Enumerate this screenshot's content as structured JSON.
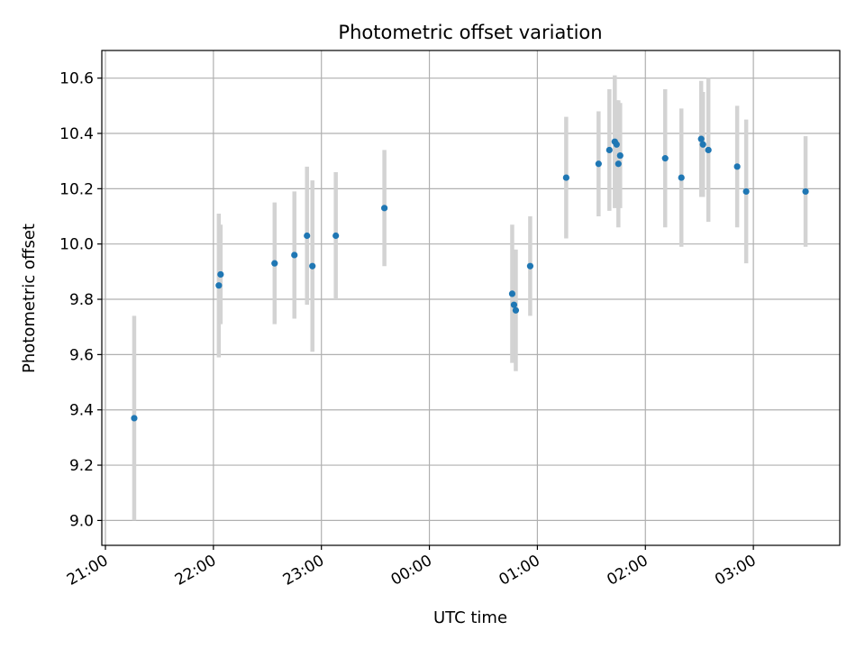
{
  "chart_data": {
    "type": "scatter",
    "title": "Photometric offset variation",
    "xlabel": "UTC time",
    "ylabel": "Photometric offset",
    "x_unit": "UTC clock time (HH:MM), date not shown; points after midnight fall on the following day",
    "xlim": [
      "20:58",
      "03:48"
    ],
    "ylim": [
      8.91,
      10.7
    ],
    "x_ticks": [
      "21:00",
      "22:00",
      "23:00",
      "00:00",
      "01:00",
      "02:00",
      "03:00"
    ],
    "y_ticks": [
      "9.0",
      "9.2",
      "9.4",
      "9.6",
      "9.8",
      "10.0",
      "10.2",
      "10.4",
      "10.6"
    ],
    "grid": true,
    "point_color": "#1f77b4",
    "errorbar_color": "#d3d3d3",
    "points": [
      {
        "x": "21:16",
        "y": 9.37,
        "err": 0.37
      },
      {
        "x": "22:03",
        "y": 9.85,
        "err": 0.26
      },
      {
        "x": "22:04",
        "y": 9.89,
        "err": 0.18
      },
      {
        "x": "22:34",
        "y": 9.93,
        "err": 0.22
      },
      {
        "x": "22:45",
        "y": 9.96,
        "err": 0.23
      },
      {
        "x": "22:52",
        "y": 10.03,
        "err": 0.25
      },
      {
        "x": "22:55",
        "y": 9.92,
        "err": 0.31
      },
      {
        "x": "23:08",
        "y": 10.03,
        "err": 0.23
      },
      {
        "x": "23:35",
        "y": 10.13,
        "err": 0.21
      },
      {
        "x": "00:46",
        "y": 9.82,
        "err": 0.25
      },
      {
        "x": "00:47",
        "y": 9.78,
        "err": 0.2
      },
      {
        "x": "00:48",
        "y": 9.76,
        "err": 0.22
      },
      {
        "x": "00:56",
        "y": 9.92,
        "err": 0.18
      },
      {
        "x": "01:16",
        "y": 10.24,
        "err": 0.22
      },
      {
        "x": "01:34",
        "y": 10.29,
        "err": 0.19
      },
      {
        "x": "01:40",
        "y": 10.34,
        "err": 0.22
      },
      {
        "x": "01:43",
        "y": 10.37,
        "err": 0.24
      },
      {
        "x": "01:44",
        "y": 10.36,
        "err": 0.16
      },
      {
        "x": "01:45",
        "y": 10.29,
        "err": 0.23
      },
      {
        "x": "01:46",
        "y": 10.32,
        "err": 0.19
      },
      {
        "x": "02:11",
        "y": 10.31,
        "err": 0.25
      },
      {
        "x": "02:20",
        "y": 10.24,
        "err": 0.25
      },
      {
        "x": "02:31",
        "y": 10.38,
        "err": 0.21
      },
      {
        "x": "02:32",
        "y": 10.36,
        "err": 0.19
      },
      {
        "x": "02:35",
        "y": 10.34,
        "err": 0.26
      },
      {
        "x": "02:51",
        "y": 10.28,
        "err": 0.22
      },
      {
        "x": "02:56",
        "y": 10.19,
        "err": 0.26
      },
      {
        "x": "03:29",
        "y": 10.19,
        "err": 0.2
      }
    ]
  }
}
